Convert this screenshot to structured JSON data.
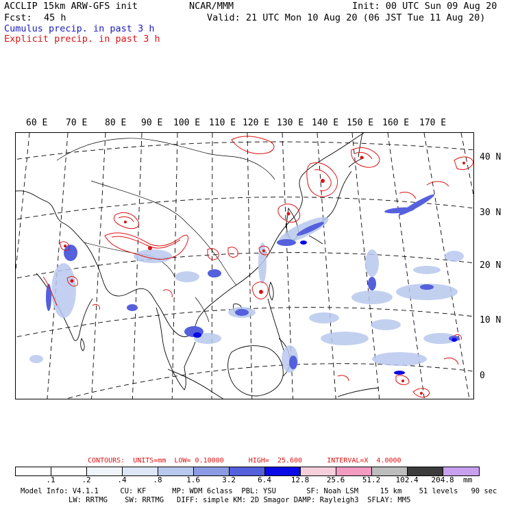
{
  "header": {
    "model_line": "ACCLIP 15km ARW-GFS init",
    "center": "NCAR/MMM",
    "init": "Init: 00 UTC Sun 09 Aug 20",
    "fcst_label": "Fcst:",
    "fcst_value": "45 h",
    "valid": "Valid: 21 UTC Mon 10 Aug 20 (06 JST Tue 11 Aug 20)",
    "cumulus_title": "Cumulus precip. in past 3 h",
    "explicit_title": "Explicit precip. in past 3 h"
  },
  "map": {
    "lon_labels": [
      "60 E",
      "70 E",
      "80 E",
      "90 E",
      "100 E",
      "110 E",
      "120 E",
      "130 E",
      "140 E",
      "150 E",
      "160 E",
      "170 E"
    ],
    "lat_labels": [
      "40 N",
      "30 N",
      "20 N",
      "10 N",
      "0"
    ]
  },
  "contours": {
    "text": "CONTOURS:  UNITS=mm  LOW= 0.10000      HIGH=  25.600      INTERVAL=X  4.0000"
  },
  "colorbar": {
    "colors": [
      "#ffffff",
      "#ffffff",
      "#f0f4fb",
      "#dce6f7",
      "#b8c8ee",
      "#8c9ce4",
      "#5560dc",
      "#0a0ae6",
      "#f7cfdb",
      "#f39bc1",
      "#bdbdbd",
      "#3c3c3c",
      "#c9a0f0"
    ],
    "labels": [
      ".1",
      ".2",
      ".4",
      ".8",
      "1.6",
      "3.2",
      "6.4",
      "12.8",
      "25.6",
      "51.2",
      "102.4",
      "204.8"
    ],
    "units": "mm"
  },
  "model_info": {
    "line1": "Model Info: V4.1.1     CU: KF      MP: WDM 6class  PBL: YSU       SF: Noah LSM     15 km    51 levels   90 sec",
    "line2": "LW: RRTMG    SW: RRTMG   DIFF: simple KM: 2D Smagor DAMP: Rayleigh3  SFLAY: MM5"
  },
  "colors": {
    "cumulus": "#1a1ab8",
    "explicit": "#dd1111",
    "coastline": "#000000",
    "gridline": "#000000"
  }
}
